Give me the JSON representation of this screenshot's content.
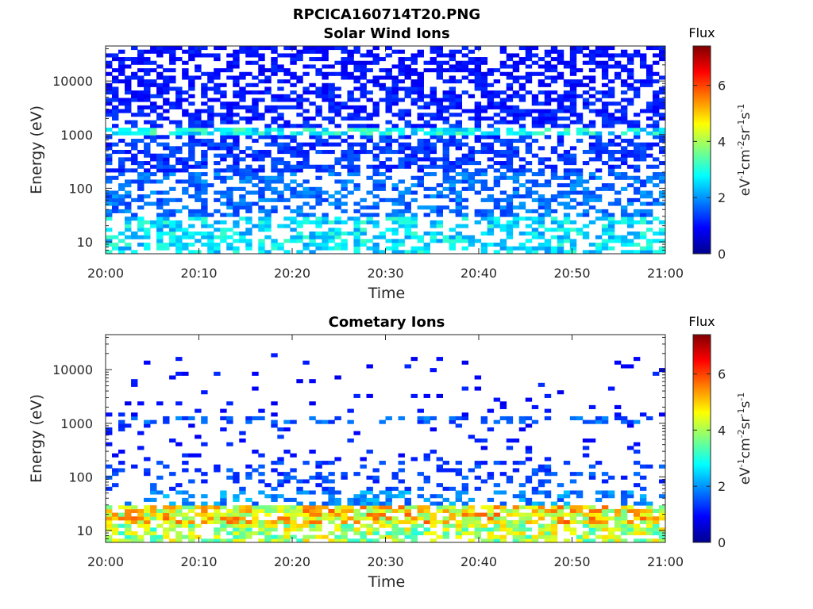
{
  "figure": {
    "title": "RPCICA160714T20.PNG"
  },
  "chart_data": [
    {
      "type": "heatmap",
      "title": "Solar Wind Ions",
      "xlabel": "Time",
      "ylabel": "Energy (eV)",
      "x_tick_labels": [
        "20:00",
        "20:10",
        "20:20",
        "20:30",
        "20:40",
        "20:50",
        "21:00"
      ],
      "x_range_minutes": [
        0,
        60
      ],
      "y_scale": "log",
      "y_range": [
        6,
        45000
      ],
      "y_ticks": [
        10,
        100,
        1000,
        10000
      ],
      "y_tick_labels": [
        "10",
        "100",
        "1000",
        "10000"
      ],
      "colorbar": {
        "title": "Flux",
        "label": "eV-1cm-2sr-1s-1",
        "range": [
          0,
          7.4
        ],
        "ticks": [
          0,
          2,
          4,
          6
        ],
        "tick_labels": [
          "0",
          "2",
          "4",
          "6"
        ],
        "colormap": "jet"
      },
      "bands": [
        {
          "emin": 20000,
          "emax": 45000,
          "flux": 1.0,
          "density": 0.55
        },
        {
          "emin": 8000,
          "emax": 20000,
          "flux": 1.0,
          "density": 0.5
        },
        {
          "emin": 2000,
          "emax": 8000,
          "flux": 1.1,
          "density": 0.55
        },
        {
          "emin": 1400,
          "emax": 2000,
          "flux": 1.2,
          "density": 0.5
        },
        {
          "emin": 1050,
          "emax": 1400,
          "flux": 2.8,
          "density": 0.65
        },
        {
          "emin": 200,
          "emax": 1050,
          "flux": 1.3,
          "density": 0.55
        },
        {
          "emin": 30,
          "emax": 200,
          "flux": 1.7,
          "density": 0.5
        },
        {
          "emin": 6,
          "emax": 30,
          "flux": 2.6,
          "density": 0.55
        }
      ],
      "seed": 7
    },
    {
      "type": "heatmap",
      "title": "Cometary Ions",
      "xlabel": "Time",
      "ylabel": "Energy (eV)",
      "x_tick_labels": [
        "20:00",
        "20:10",
        "20:20",
        "20:30",
        "20:40",
        "20:50",
        "21:00"
      ],
      "x_range_minutes": [
        0,
        60
      ],
      "y_scale": "log",
      "y_range": [
        6,
        45000
      ],
      "y_ticks": [
        10,
        100,
        1000,
        10000
      ],
      "y_tick_labels": [
        "10",
        "100",
        "1000",
        "10000"
      ],
      "colorbar": {
        "title": "Flux",
        "label": "eV-1cm-2sr-1s-1",
        "range": [
          0,
          7.4
        ],
        "ticks": [
          0,
          2,
          4,
          6
        ],
        "tick_labels": [
          "0",
          "2",
          "4",
          "6"
        ],
        "colormap": "jet"
      },
      "bands": [
        {
          "emin": 3000,
          "emax": 20000,
          "flux": 1.0,
          "density": 0.03
        },
        {
          "emin": 1400,
          "emax": 3000,
          "flux": 1.0,
          "density": 0.05
        },
        {
          "emin": 1050,
          "emax": 1400,
          "flux": 1.6,
          "density": 0.35
        },
        {
          "emin": 200,
          "emax": 1050,
          "flux": 1.1,
          "density": 0.07
        },
        {
          "emin": 60,
          "emax": 200,
          "flux": 1.4,
          "density": 0.22
        },
        {
          "emin": 30,
          "emax": 60,
          "flux": 1.9,
          "density": 0.35
        },
        {
          "emin": 14,
          "emax": 30,
          "flux": 4.7,
          "density": 0.75
        },
        {
          "emin": 6,
          "emax": 14,
          "flux": 4.0,
          "density": 0.65
        }
      ],
      "seed": 23
    }
  ]
}
